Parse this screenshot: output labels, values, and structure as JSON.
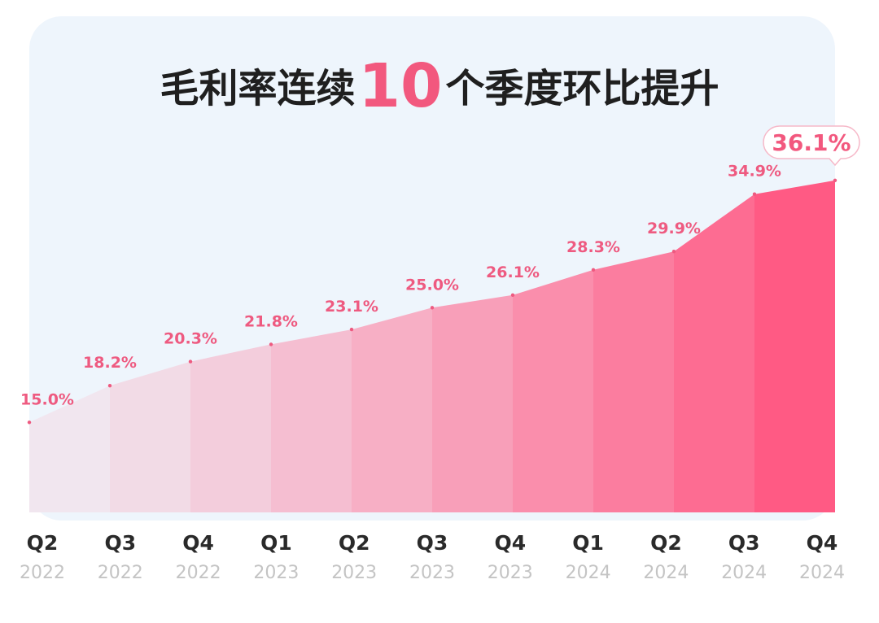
{
  "title": {
    "prefix": "毛利率连续",
    "number": "10",
    "suffix": "个季度环比提升"
  },
  "colors": {
    "accent": "#f2587e",
    "label": "#ee5a80",
    "card_bg": "#eef5fc",
    "area_start": "#f1e6ef",
    "area_end": "#ff5a84"
  },
  "chart_data": {
    "type": "area",
    "title": "毛利率连续10个季度环比提升",
    "categories": [
      "Q2 2022",
      "Q3 2022",
      "Q4 2022",
      "Q1 2023",
      "Q2 2023",
      "Q3 2023",
      "Q4 2023",
      "Q1 2024",
      "Q2 2024",
      "Q3 2024",
      "Q4 2024"
    ],
    "quarters": [
      "Q2",
      "Q3",
      "Q4",
      "Q1",
      "Q2",
      "Q3",
      "Q4",
      "Q1",
      "Q2",
      "Q3",
      "Q4"
    ],
    "years": [
      "2022",
      "2022",
      "2022",
      "2023",
      "2023",
      "2023",
      "2023",
      "2024",
      "2024",
      "2024",
      "2024"
    ],
    "values": [
      15.0,
      18.2,
      20.3,
      21.8,
      23.1,
      25.0,
      26.1,
      28.3,
      29.9,
      34.9,
      36.1
    ],
    "labels": [
      "15.0%",
      "18.2%",
      "20.3%",
      "21.8%",
      "23.1%",
      "25.0%",
      "26.1%",
      "28.3%",
      "29.9%",
      "34.9%",
      "36.1%"
    ],
    "highlight_last": true,
    "grid": false,
    "legend": "none"
  }
}
